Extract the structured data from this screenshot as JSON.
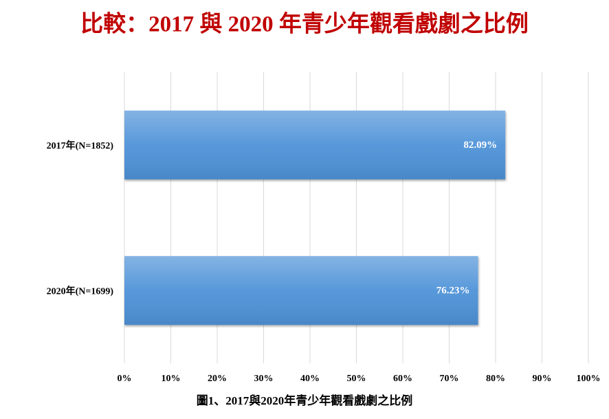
{
  "chart_data": {
    "type": "bar",
    "orientation": "horizontal",
    "title": "比較：2017 與 2020 年青少年觀看戲劇之比例",
    "caption": "圖1、2017與2020年青少年觀看戲劇之比例",
    "categories": [
      "2017年(N=1852)",
      "2020年(N=1699)"
    ],
    "values": [
      82.09,
      76.23
    ],
    "value_labels": [
      "82.09%",
      "76.23%"
    ],
    "color": "#4f93d8",
    "xlim": [
      0,
      100
    ],
    "xticks": [
      {
        "value": 0,
        "label": "0%"
      },
      {
        "value": 10,
        "label": "10%"
      },
      {
        "value": 20,
        "label": "20%"
      },
      {
        "value": 30,
        "label": "30%"
      },
      {
        "value": 40,
        "label": "40%"
      },
      {
        "value": 50,
        "label": "50%"
      },
      {
        "value": 60,
        "label": "60%"
      },
      {
        "value": 70,
        "label": "70%"
      },
      {
        "value": 80,
        "label": "80%"
      },
      {
        "value": 90,
        "label": "90%"
      },
      {
        "value": 100,
        "label": "100%"
      }
    ],
    "grid": true
  }
}
